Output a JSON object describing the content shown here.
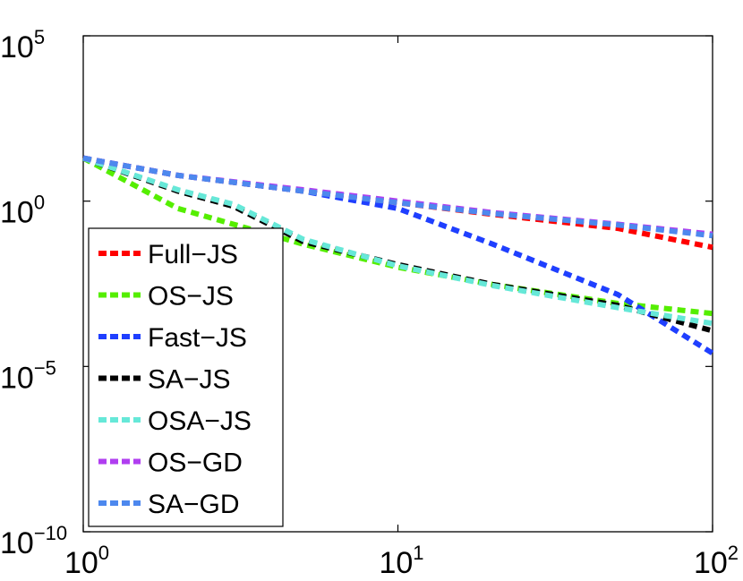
{
  "chart_data": {
    "type": "line",
    "title": "",
    "xlabel": "",
    "ylabel": "",
    "xscale": "log",
    "yscale": "log",
    "xlim": [
      1,
      100
    ],
    "ylim": [
      1e-10,
      100000
    ],
    "x_ticks": [
      {
        "base": "10",
        "exp": "0",
        "value": 1
      },
      {
        "base": "10",
        "exp": "1",
        "value": 10
      },
      {
        "base": "10",
        "exp": "2",
        "value": 100
      }
    ],
    "y_ticks": [
      {
        "base": "10",
        "exp": "5",
        "value": 100000
      },
      {
        "base": "10",
        "exp": "0",
        "value": 1
      },
      {
        "base": "10",
        "exp": "−5",
        "value": 1e-05
      },
      {
        "base": "10",
        "exp": "−10",
        "value": 1e-10
      }
    ],
    "grid": false,
    "legend_position": "left",
    "series": [
      {
        "name": "Full−JS",
        "color": "#ff0000",
        "x": [
          1,
          2,
          5,
          10,
          20,
          50,
          100
        ],
        "y": [
          20,
          6,
          2,
          0.9,
          0.4,
          0.15,
          0.04
        ]
      },
      {
        "name": "OS−JS",
        "color": "#55ee00",
        "x": [
          1,
          2,
          5,
          10,
          20,
          50,
          100
        ],
        "y": [
          20,
          0.6,
          0.05,
          0.01,
          0.003,
          0.0008,
          0.0004
        ]
      },
      {
        "name": "Fast−JS",
        "color": "#1f3fff",
        "x": [
          1,
          2,
          5,
          10,
          20,
          50,
          100
        ],
        "y": [
          20,
          6,
          2,
          0.6,
          0.05,
          0.0015,
          2.5e-05
        ]
      },
      {
        "name": "SA−JS",
        "color": "#000000",
        "x": [
          1,
          2,
          3,
          5,
          10,
          20,
          50,
          100
        ],
        "y": [
          20,
          2,
          0.7,
          0.06,
          0.012,
          0.003,
          0.0007,
          0.00012
        ]
      },
      {
        "name": "OSA−JS",
        "color": "#66e8d8",
        "x": [
          1,
          2,
          3,
          5,
          10,
          20,
          50,
          100
        ],
        "y": [
          20,
          2.2,
          0.8,
          0.07,
          0.011,
          0.0028,
          0.0006,
          0.0002
        ]
      },
      {
        "name": "OS−GD",
        "color": "#b03ef0",
        "x": [
          1,
          2,
          5,
          10,
          20,
          50,
          100
        ],
        "y": [
          20,
          6,
          2.2,
          1,
          0.45,
          0.2,
          0.1
        ]
      },
      {
        "name": "SA−GD",
        "color": "#4d88ee",
        "x": [
          1,
          2,
          5,
          10,
          20,
          50,
          100
        ],
        "y": [
          20,
          6,
          2,
          0.9,
          0.42,
          0.19,
          0.09
        ]
      }
    ]
  }
}
